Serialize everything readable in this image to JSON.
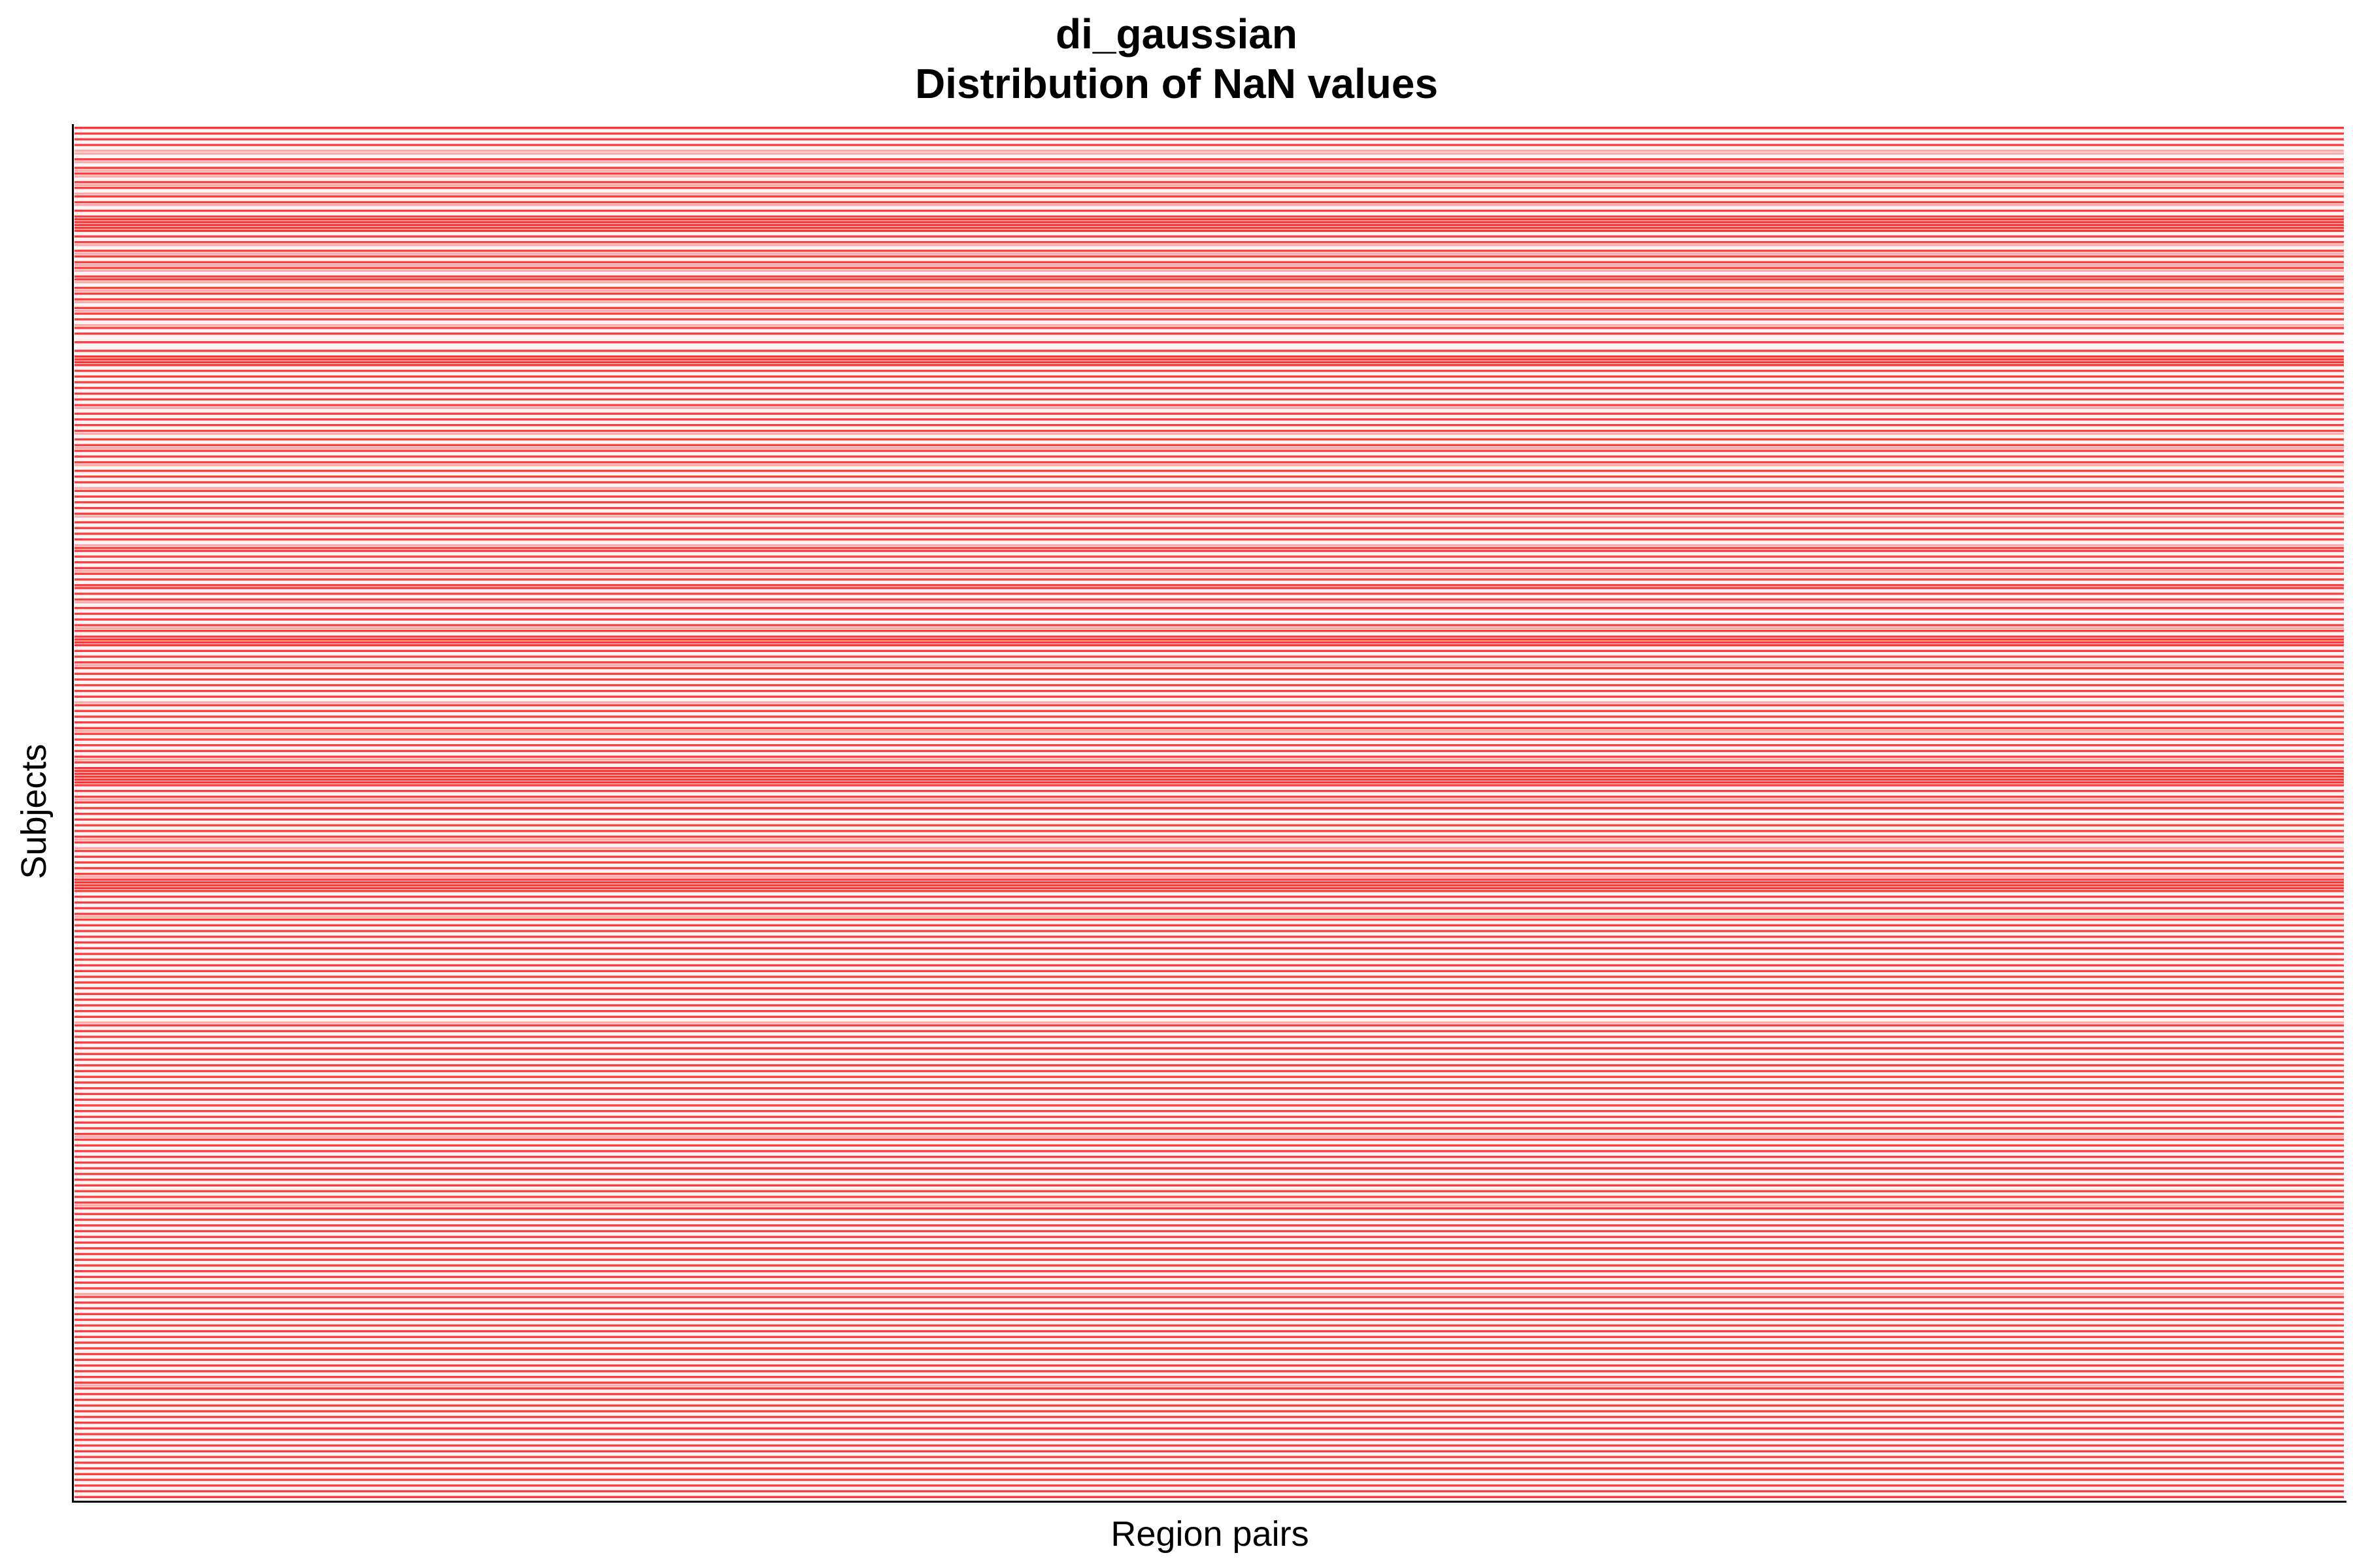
{
  "chart_data": {
    "type": "heatmap",
    "title": [
      "di_gaussian",
      "Distribution of NaN values"
    ],
    "xlabel": "Region pairs",
    "ylabel": "Subjects",
    "x_ticks": [],
    "y_ticks": [],
    "legend": "none",
    "grid": false,
    "colors": {
      "nan": "#ff2a2a",
      "valid": "#ffffff",
      "axis": "#000000"
    },
    "n_subjects": 480,
    "description_of_values": "1 = NaN (red), 0 = valid (white); rows are subjects",
    "nan_row_fraction": [
      0.95,
      0.05,
      0.9,
      0.05,
      0.9,
      0.05,
      0.9,
      0.05,
      0.4,
      0.4,
      0.05,
      0.9,
      0.4,
      0.05,
      0.9,
      0.4,
      0.9,
      0.4,
      0.05,
      0.9,
      0.4,
      0.9,
      0.05,
      0.4,
      0.9,
      0.05,
      0.9,
      0.4,
      0.05,
      0.9,
      0.05,
      0.9,
      0.95,
      0.95,
      0.95,
      0.95,
      0.95,
      0.05,
      0.9,
      0.05,
      0.9,
      0.4,
      0.05,
      0.9,
      0.4,
      0.9,
      0.05,
      0.9,
      0.4,
      0.9,
      0.4,
      0.05,
      0.9,
      0.9,
      0.4,
      0.05,
      0.9,
      0.4,
      0.9,
      0.05,
      0.9,
      0.4,
      0.05,
      0.9,
      0.4,
      0.9,
      0.05,
      0.9,
      0.05,
      0.4,
      0.9,
      0.05,
      0.9,
      0.05,
      0.05,
      0.9,
      0.05,
      0.05,
      0.9,
      0.05,
      0.95,
      0.95,
      0.95,
      0.95,
      0.05,
      0.9,
      0.05,
      0.9,
      0.05,
      0.9,
      0.05,
      0.9,
      0.05,
      0.9,
      0.05,
      0.9,
      0.05,
      0.9,
      0.4,
      0.05,
      0.9,
      0.05,
      0.9,
      0.05,
      0.9,
      0.05,
      0.9,
      0.4,
      0.05,
      0.9,
      0.05,
      0.9,
      0.4,
      0.9,
      0.05,
      0.9,
      0.05,
      0.9,
      0.4,
      0.05,
      0.9,
      0.05,
      0.9,
      0.05,
      0.9,
      0.05,
      0.4,
      0.9,
      0.05,
      0.9,
      0.05,
      0.9,
      0.05,
      0.9,
      0.05,
      0.9,
      0.4,
      0.05,
      0.9,
      0.05,
      0.9,
      0.05,
      0.9,
      0.05,
      0.9,
      0.05,
      0.4,
      0.9,
      0.9,
      0.05,
      0.9,
      0.05,
      0.9,
      0.05,
      0.9,
      0.4,
      0.9,
      0.05,
      0.9,
      0.05,
      0.9,
      0.9,
      0.05,
      0.9,
      0.05,
      0.9,
      0.4,
      0.05,
      0.9,
      0.05,
      0.9,
      0.05,
      0.9,
      0.05,
      0.9,
      0.4,
      0.9,
      0.05,
      0.9,
      0.95,
      0.95,
      0.95,
      0.05,
      0.9,
      0.05,
      0.9,
      0.05,
      0.9,
      0.4,
      0.9,
      0.05,
      0.9,
      0.05,
      0.9,
      0.05,
      0.9,
      0.05,
      0.9,
      0.05,
      0.9,
      0.05,
      0.4,
      0.9,
      0.05,
      0.9,
      0.05,
      0.9,
      0.05,
      0.9,
      0.05,
      0.9,
      0.4,
      0.9,
      0.05,
      0.9,
      0.05,
      0.9,
      0.05,
      0.9,
      0.05,
      0.9,
      0.4,
      0.9,
      0.05,
      0.95,
      0.95,
      0.95,
      0.95,
      0.95,
      0.95,
      0.9,
      0.05,
      0.9,
      0.05,
      0.9,
      0.4,
      0.9,
      0.05,
      0.9,
      0.05,
      0.9,
      0.05,
      0.9,
      0.05,
      0.9,
      0.05,
      0.9,
      0.05,
      0.9,
      0.4,
      0.9,
      0.05,
      0.4,
      0.9,
      0.05,
      0.9,
      0.05,
      0.9,
      0.05,
      0.9,
      0.05,
      0.9,
      0.4,
      0.9,
      0.95,
      0.95,
      0.95,
      0.9,
      0.05,
      0.9,
      0.05,
      0.9,
      0.05,
      0.9,
      0.05,
      0.9,
      0.4,
      0.9,
      0.05,
      0.9,
      0.05,
      0.9,
      0.05,
      0.9,
      0.05,
      0.9,
      0.05,
      0.9,
      0.05,
      0.9,
      0.05,
      0.9,
      0.05,
      0.9,
      0.05,
      0.9,
      0.05,
      0.9,
      0.05,
      0.9,
      0.05,
      0.9,
      0.05,
      0.9,
      0.05,
      0.9,
      0.05,
      0.9,
      0.05,
      0.9,
      0.05,
      0.9,
      0.05,
      0.4,
      0.9,
      0.05,
      0.9,
      0.05,
      0.9,
      0.05,
      0.9,
      0.05,
      0.9,
      0.05,
      0.9,
      0.05,
      0.9,
      0.05,
      0.9,
      0.05,
      0.9,
      0.05,
      0.9,
      0.05,
      0.9,
      0.05,
      0.9,
      0.05,
      0.9,
      0.05,
      0.9,
      0.05,
      0.9,
      0.05,
      0.9,
      0.05,
      0.9,
      0.05,
      0.9,
      0.05,
      0.9,
      0.05,
      0.9,
      0.4,
      0.9,
      0.05,
      0.9,
      0.05,
      0.9,
      0.05,
      0.9,
      0.05,
      0.9,
      0.05,
      0.9,
      0.05,
      0.9,
      0.05,
      0.9,
      0.05,
      0.9,
      0.05,
      0.9,
      0.05,
      0.9,
      0.05,
      0.9,
      0.4,
      0.9,
      0.05,
      0.9,
      0.05,
      0.9,
      0.05,
      0.9,
      0.05,
      0.9,
      0.05,
      0.9,
      0.05,
      0.9,
      0.05,
      0.9,
      0.05,
      0.9,
      0.05,
      0.9,
      0.05,
      0.9,
      0.05,
      0.9,
      0.05,
      0.9,
      0.05,
      0.9,
      0.05,
      0.9,
      0.05,
      0.4,
      0.9,
      0.05,
      0.9,
      0.05,
      0.9,
      0.05,
      0.9,
      0.05,
      0.9,
      0.05,
      0.9,
      0.05,
      0.9,
      0.05,
      0.9,
      0.05,
      0.9,
      0.05,
      0.9,
      0.05,
      0.9,
      0.05,
      0.9,
      0.05,
      0.9,
      0.05,
      0.9,
      0.05,
      0.9,
      0.05,
      0.9,
      0.4,
      0.9,
      0.05,
      0.9,
      0.05,
      0.9,
      0.05,
      0.9,
      0.05,
      0.9,
      0.05,
      0.9,
      0.05,
      0.9,
      0.05,
      0.9,
      0.05,
      0.9,
      0.05,
      0.9,
      0.05,
      0.9,
      0.05,
      0.9,
      0.05,
      0.9,
      0.05,
      0.9,
      0.05,
      0.9,
      0.05,
      0.9,
      0.05,
      0.9,
      0.05,
      0.9,
      0.05,
      0.9,
      0.05,
      0.9
    ]
  }
}
